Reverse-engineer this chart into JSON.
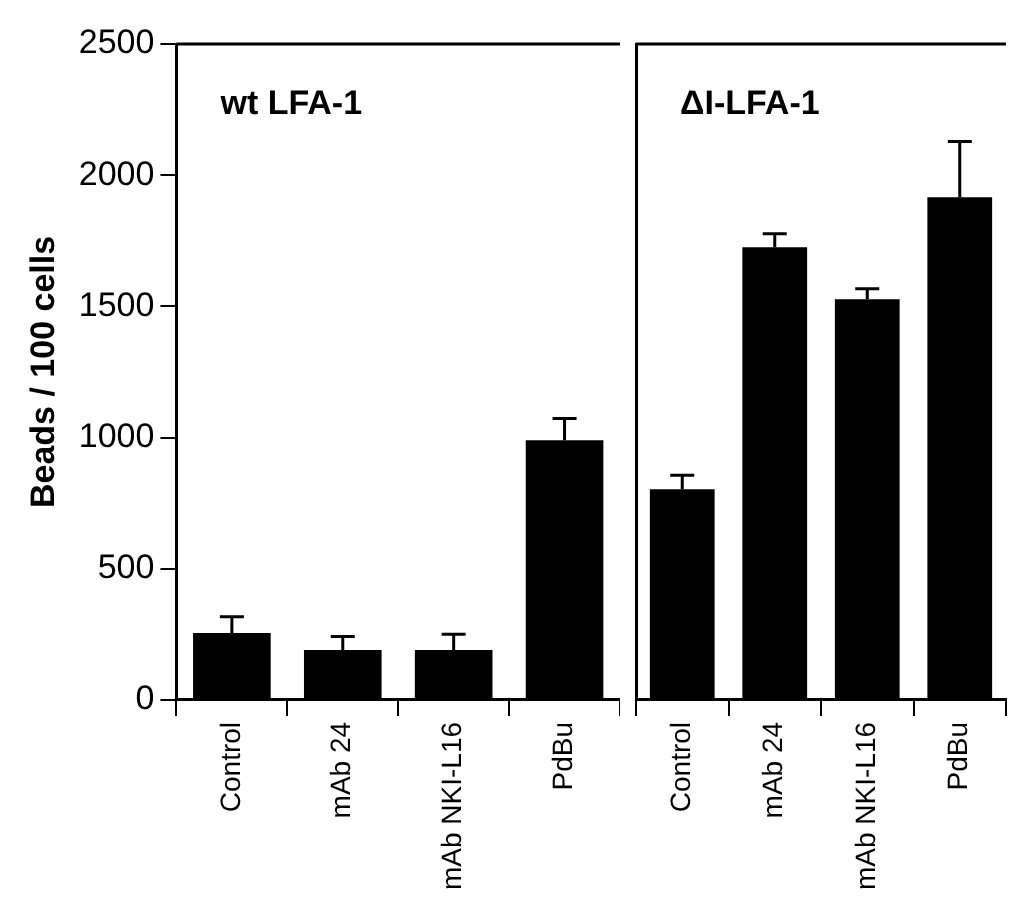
{
  "chart_data": [
    {
      "type": "bar",
      "annotations": [
        "wt LFA-1"
      ],
      "ylabel": "Beads / 100 cells",
      "categories": [
        "Control",
        "mAb 24",
        "mAb NKI-L16",
        "PdBu"
      ],
      "color": "#000000",
      "values": [
        255,
        190,
        190,
        990
      ],
      "errors": [
        [
          255,
          317
        ],
        [
          190,
          242
        ],
        [
          190,
          250
        ],
        [
          990,
          1073
        ]
      ],
      "ylim": [
        0,
        2500
      ],
      "yticks": [
        0,
        500,
        1000,
        1500,
        2000,
        2500
      ],
      "grid": false
    },
    {
      "type": "bar",
      "annotations": [
        "ΔI-LFA-1"
      ],
      "categories": [
        "Control",
        "mAb 24",
        "mAb NKI-L16",
        "PdBu"
      ],
      "color": "#000000",
      "values": [
        803,
        1725,
        1527,
        1916
      ],
      "errors": [
        [
          803,
          856
        ],
        [
          1725,
          1777
        ],
        [
          1527,
          1567
        ],
        [
          1916,
          2128
        ]
      ],
      "ylim": [
        0,
        2500
      ],
      "yticks": [
        0,
        500,
        1000,
        1500,
        2000,
        2500
      ],
      "tick_labels": "x",
      "grid": false
    }
  ]
}
